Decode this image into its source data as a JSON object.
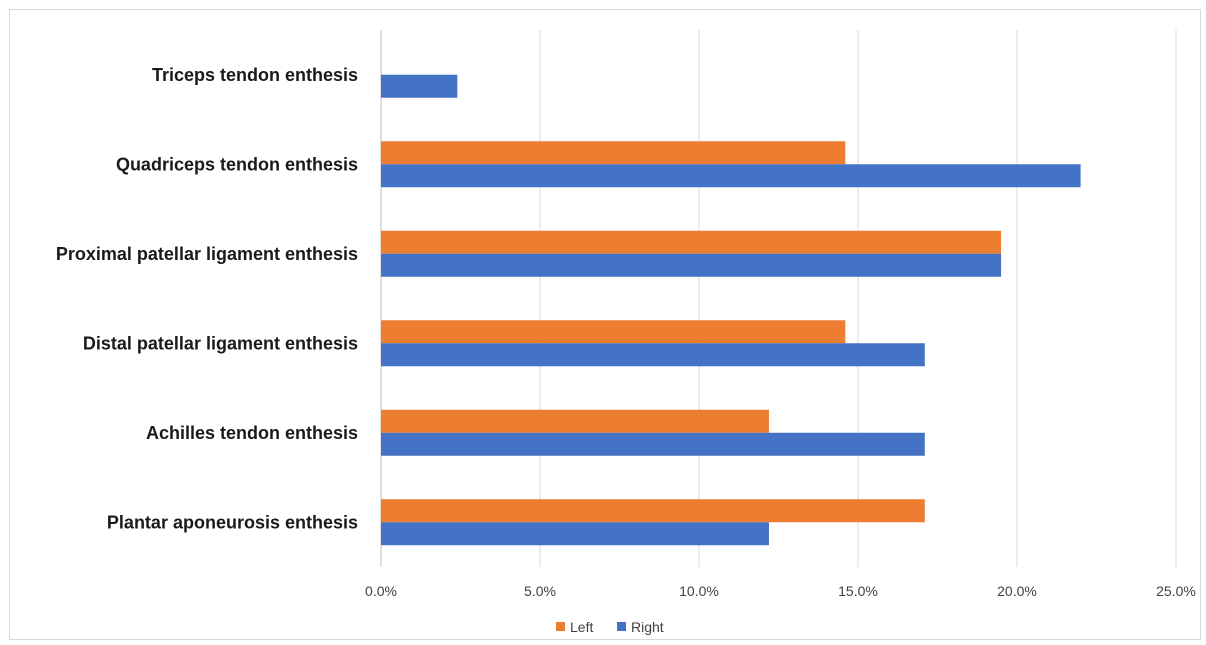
{
  "chart_data": {
    "type": "bar",
    "orientation": "horizontal",
    "categories": [
      "Triceps tendon enthesis",
      "Quadriceps tendon enthesis",
      "Proximal patellar ligament enthesis",
      "Distal patellar ligament enthesis",
      "Achilles tendon enthesis",
      "Plantar aponeurosis enthesis"
    ],
    "series": [
      {
        "name": "Left",
        "color": "#ED7D31",
        "values": [
          0,
          14.6,
          19.5,
          14.6,
          12.2,
          17.1
        ]
      },
      {
        "name": "Right",
        "color": "#4472C4",
        "values": [
          2.4,
          22.0,
          19.5,
          17.1,
          17.1,
          12.2
        ]
      }
    ],
    "xlim": [
      0,
      25
    ],
    "xticks": [
      {
        "value": 0,
        "label": "0.0%"
      },
      {
        "value": 5,
        "label": "5.0%"
      },
      {
        "value": 10,
        "label": "10.0%"
      },
      {
        "value": 15,
        "label": "15.0%"
      },
      {
        "value": 20,
        "label": "20.0%"
      },
      {
        "value": 25,
        "label": "25.0%"
      }
    ],
    "title": "",
    "xlabel": "",
    "ylabel": "",
    "grid": true,
    "legend_position": "bottom"
  }
}
